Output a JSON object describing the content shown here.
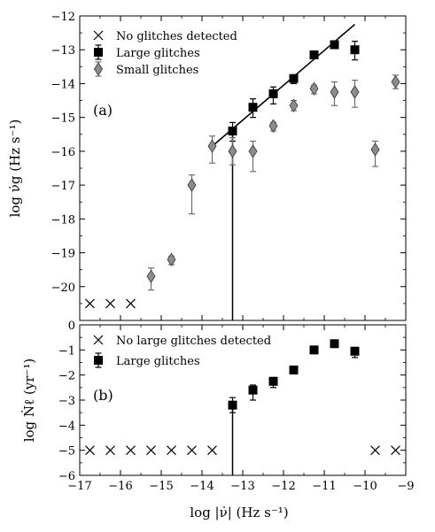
{
  "chart_data": [
    {
      "type": "scatter",
      "panel_label": "(a)",
      "xlabel": "log |ν̇| (Hz s⁻¹)",
      "ylabel": "log ν̇g (Hz s⁻¹)",
      "xlim": [
        -17,
        -9
      ],
      "ylim": [
        -21,
        -12
      ],
      "x_ticks": [
        -17,
        -16,
        -15,
        -14,
        -13,
        -12,
        -11,
        -10,
        -9
      ],
      "x_tick_labels": [
        "−17",
        "−16",
        "−15",
        "−14",
        "−13",
        "−12",
        "−11",
        "−10",
        "−9"
      ],
      "y_ticks": [
        -20,
        -19,
        -18,
        -17,
        -16,
        -15,
        -14,
        -13,
        -12
      ],
      "y_tick_labels": [
        "−20",
        "−19",
        "−18",
        "−17",
        "−16",
        "−15",
        "−14",
        "−13",
        "−12"
      ],
      "legend_position": "top-left",
      "series": [
        {
          "name": "No glitches detected",
          "marker": "x",
          "color": "#000000",
          "points": [
            {
              "x": -16.75,
              "y": -20.5
            },
            {
              "x": -16.25,
              "y": -20.5
            },
            {
              "x": -15.75,
              "y": -20.5
            }
          ]
        },
        {
          "name": "Large glitches",
          "marker": "square",
          "color": "#000000",
          "points": [
            {
              "x": -13.25,
              "y": -15.4,
              "err_lo": 0.3,
              "err_hi": 0.25
            },
            {
              "x": -12.75,
              "y": -14.7,
              "err_lo": 0.3,
              "err_hi": 0.25
            },
            {
              "x": -12.25,
              "y": -14.3,
              "err_lo": 0.3,
              "err_hi": 0.2
            },
            {
              "x": -11.75,
              "y": -13.85,
              "err_lo": 0.15,
              "err_hi": 0.1
            },
            {
              "x": -11.25,
              "y": -13.15,
              "err_lo": 0.1,
              "err_hi": 0.1
            },
            {
              "x": -10.75,
              "y": -12.85,
              "err_lo": 0.1,
              "err_hi": 0.1
            },
            {
              "x": -10.25,
              "y": -13.0,
              "err_lo": 0.3,
              "err_hi": 0.25
            }
          ]
        },
        {
          "name": "Small glitches",
          "marker": "diamond",
          "color": "#8c8c8c",
          "points": [
            {
              "x": -15.25,
              "y": -19.7,
              "err_lo": 0.4,
              "err_hi": 0.25
            },
            {
              "x": -14.75,
              "y": -19.2,
              "err_lo": 0.15,
              "err_hi": 0.1
            },
            {
              "x": -14.25,
              "y": -17.0,
              "err_lo": 0.85,
              "err_hi": 0.3
            },
            {
              "x": -13.75,
              "y": -15.85,
              "err_lo": 0.5,
              "err_hi": 0.3
            },
            {
              "x": -13.25,
              "y": -16.0,
              "err_lo": 0.4,
              "err_hi": 0.4
            },
            {
              "x": -12.75,
              "y": -16.0,
              "err_lo": 0.6,
              "err_hi": 0.3
            },
            {
              "x": -12.25,
              "y": -15.25,
              "err_lo": 0.15,
              "err_hi": 0.1
            },
            {
              "x": -11.75,
              "y": -14.65,
              "err_lo": 0.15,
              "err_hi": 0.15
            },
            {
              "x": -11.25,
              "y": -14.15,
              "err_lo": 0.15,
              "err_hi": 0.1
            },
            {
              "x": -10.75,
              "y": -14.25,
              "err_lo": 0.4,
              "err_hi": 0.3
            },
            {
              "x": -10.25,
              "y": -14.25,
              "err_lo": 0.45,
              "err_hi": 0.35
            },
            {
              "x": -9.75,
              "y": -15.95,
              "err_lo": 0.5,
              "err_hi": 0.25
            },
            {
              "x": -9.25,
              "y": -13.95,
              "err_lo": 0.2,
              "err_hi": 0.2
            }
          ]
        }
      ],
      "fit_line": {
        "x": [
          -13.75,
          -10.25
        ],
        "y": [
          -15.85,
          -12.25
        ]
      },
      "vertical_line": {
        "x": -13.25,
        "y_top": -15.4
      }
    },
    {
      "type": "scatter",
      "panel_label": "(b)",
      "xlabel": "log |ν̇| (Hz s⁻¹)",
      "ylabel": "log Ṅℓ (yr⁻¹)",
      "xlim": [
        -17,
        -9
      ],
      "ylim": [
        -6,
        0
      ],
      "x_ticks": [
        -17,
        -16,
        -15,
        -14,
        -13,
        -12,
        -11,
        -10,
        -9
      ],
      "x_tick_labels": [
        "−17",
        "−16",
        "−15",
        "−14",
        "−13",
        "−12",
        "−11",
        "−10",
        "−9"
      ],
      "y_ticks": [
        -6,
        -5,
        -4,
        -3,
        -2,
        -1,
        0
      ],
      "y_tick_labels": [
        "−6",
        "−5",
        "−4",
        "−3",
        "−2",
        "−1",
        "0"
      ],
      "legend_position": "top-left",
      "series": [
        {
          "name": "No large glitches detected",
          "marker": "x",
          "color": "#000000",
          "points": [
            {
              "x": -16.75,
              "y": -5
            },
            {
              "x": -16.25,
              "y": -5
            },
            {
              "x": -15.75,
              "y": -5
            },
            {
              "x": -15.25,
              "y": -5
            },
            {
              "x": -14.75,
              "y": -5
            },
            {
              "x": -14.25,
              "y": -5
            },
            {
              "x": -13.75,
              "y": -5
            },
            {
              "x": -9.75,
              "y": -5
            },
            {
              "x": -9.25,
              "y": -5
            }
          ]
        },
        {
          "name": "Large glitches",
          "marker": "square",
          "color": "#000000",
          "points": [
            {
              "x": -13.25,
              "y": -3.2,
              "err_lo": 0.3,
              "err_hi": 0.3
            },
            {
              "x": -12.75,
              "y": -2.6,
              "err_lo": 0.4,
              "err_hi": 0.2
            },
            {
              "x": -12.25,
              "y": -2.25,
              "err_lo": 0.25,
              "err_hi": 0.15
            },
            {
              "x": -11.75,
              "y": -1.8,
              "err_lo": 0.1,
              "err_hi": 0.1
            },
            {
              "x": -11.25,
              "y": -1.0,
              "err_lo": 0.05,
              "err_hi": 0.05
            },
            {
              "x": -10.75,
              "y": -0.75,
              "err_lo": 0.05,
              "err_hi": 0.05
            },
            {
              "x": -10.25,
              "y": -1.05,
              "err_lo": 0.25,
              "err_hi": 0.15
            }
          ]
        }
      ],
      "vertical_line": {
        "x": -13.25,
        "y_top": -3.2
      }
    }
  ]
}
